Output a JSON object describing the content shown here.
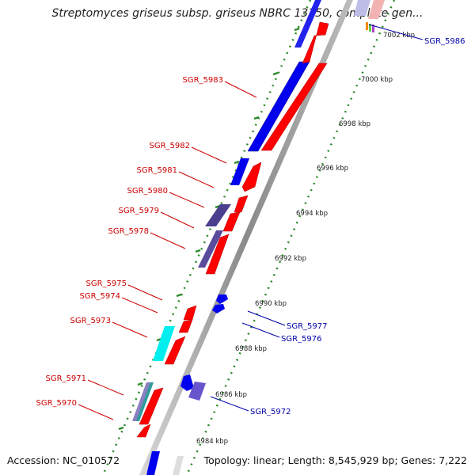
{
  "title": "Streptomyces griseus subsp. griseus NBRC 13350, complete gen...",
  "footer": {
    "accession": "Accession: NC_010572",
    "topology": "Topology: linear; Length: 8,545,929 bp; Genes: 7,222"
  },
  "colors": {
    "forward_gene": "#ff0000",
    "reverse_gene": "#0000ff",
    "cds_blue": "#0000ee",
    "purple": "#5a4c9c",
    "cyan": "#00ffff",
    "axis": "#999999",
    "ticks": "#2a8a2a",
    "forward_label": "#cc0000",
    "reverse_label": "#0000aa"
  },
  "ticks": [
    {
      "label": "7002 kbp"
    },
    {
      "label": "7000 kbp"
    },
    {
      "label": "6998 kbp"
    },
    {
      "label": "6996 kbp"
    },
    {
      "label": "6994 kbp"
    },
    {
      "label": "6992 kbp"
    },
    {
      "label": "6990 kbp"
    },
    {
      "label": "6988 kbp"
    },
    {
      "label": "6986 kbp"
    },
    {
      "label": "6984 kbp"
    }
  ],
  "left_labels": [
    {
      "text": "SGR_5983"
    },
    {
      "text": "SGR_5982"
    },
    {
      "text": "SGR_5981"
    },
    {
      "text": "SGR_5980"
    },
    {
      "text": "SGR_5979"
    },
    {
      "text": "SGR_5978"
    },
    {
      "text": "SGR_5975"
    },
    {
      "text": "SGR_5974"
    },
    {
      "text": "SGR_5973"
    },
    {
      "text": "SGR_5971"
    },
    {
      "text": "SGR_5970"
    }
  ],
  "right_labels": [
    {
      "text": "SGR_5986"
    },
    {
      "text": "SGR_5977"
    },
    {
      "text": "SGR_5976"
    },
    {
      "text": "SGR_5972"
    }
  ]
}
